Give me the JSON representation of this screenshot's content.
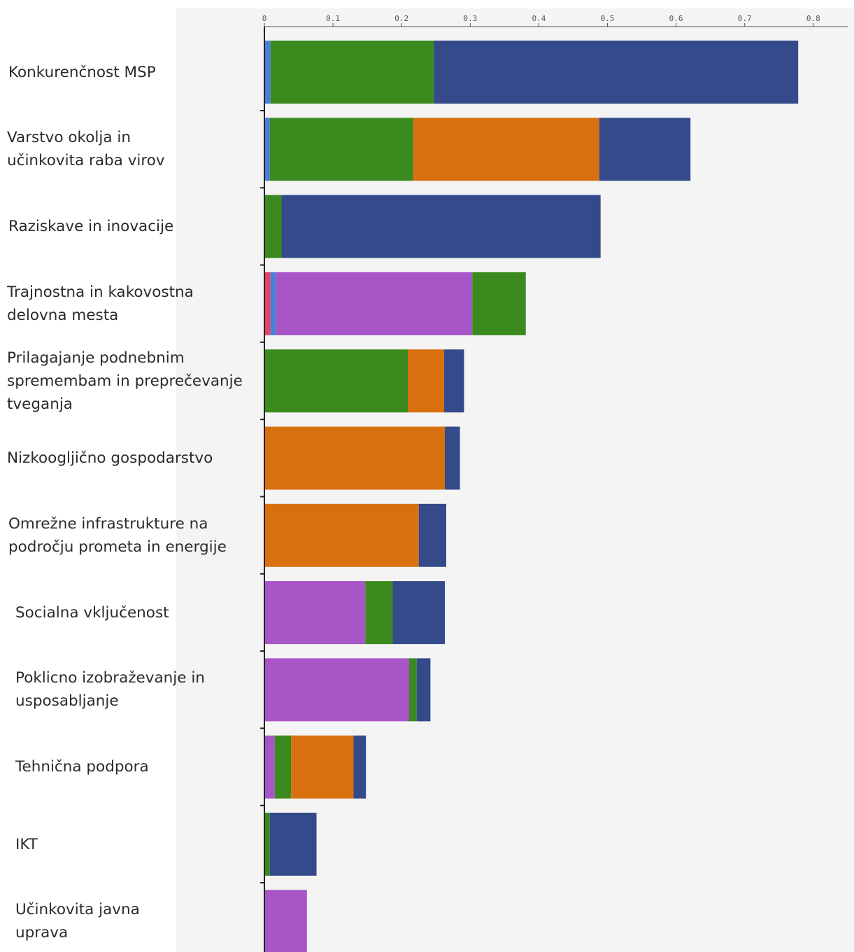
{
  "chart_data": {
    "type": "bar",
    "orientation": "horizontal",
    "stacked": true,
    "xlim": [
      0,
      0.85
    ],
    "ticks": [
      0,
      0.1,
      0.2,
      0.3,
      0.4,
      0.5,
      0.6,
      0.7,
      0.8
    ],
    "tick_labels": [
      "0",
      "0.1",
      "0.2",
      "0.3",
      "0.4",
      "0.5",
      "0.6",
      "0.7",
      "0.8"
    ],
    "legend": "none",
    "grid": false,
    "segment_colors": [
      "#e0456a",
      "#4a7fd6",
      "#a855c8",
      "#3a8a1e",
      "#d9700f",
      "#344a8a"
    ],
    "categories": [
      "Konkurenčnost MSP",
      "Varstvo okolja  in\nučinkovita raba virov",
      "Raziskave in inovacije",
      "Trajnostna in kakovostna\ndelovna mesta",
      "Prilagajanje podnebnim\nspremembam in preprečevanje\ntveganja",
      "Nizkoogljično gospodarstvo",
      "Omrežne infrastrukture na\npodročju prometa in energije",
      "Socialna vključenost",
      "Poklicno izobraževanje in\nusposabljanje",
      "Tehnična podpora",
      "IKT",
      "Učinkovita javna\nuprava"
    ],
    "series": [
      {
        "values": [
          0,
          0,
          0,
          0.009,
          0,
          0,
          0,
          0,
          0,
          0,
          0,
          0
        ]
      },
      {
        "values": [
          0.009,
          0.008,
          0,
          0.008,
          0,
          0,
          0,
          0,
          0,
          0,
          0,
          0
        ]
      },
      {
        "values": [
          0,
          0,
          0,
          0.286,
          0,
          0,
          0,
          0.147,
          0.211,
          0.015,
          0,
          0.062
        ]
      },
      {
        "values": [
          0.238,
          0.209,
          0.025,
          0.078,
          0.209,
          0,
          0,
          0.04,
          0.011,
          0.024,
          0.008,
          0
        ]
      },
      {
        "values": [
          0,
          0.271,
          0,
          0,
          0.053,
          0.263,
          0.225,
          0,
          0,
          0.091,
          0,
          0
        ]
      },
      {
        "values": [
          0.531,
          0.133,
          0.465,
          0,
          0.029,
          0.022,
          0.04,
          0.076,
          0.02,
          0.018,
          0.068,
          0
        ]
      }
    ]
  }
}
